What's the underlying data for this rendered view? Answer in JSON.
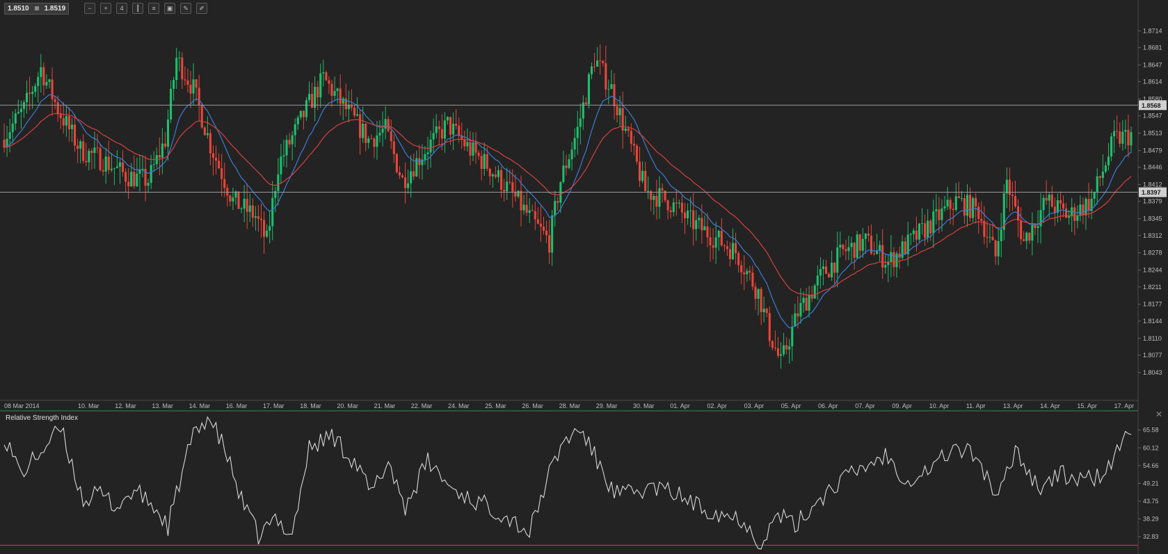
{
  "toolbar": {
    "bid": "1.8510",
    "ask": "1.8519",
    "buttons": [
      {
        "name": "zoom-out-icon",
        "glyph": "−"
      },
      {
        "name": "zoom-in-icon",
        "glyph": "+"
      },
      {
        "name": "timeframe-icon",
        "glyph": "4"
      },
      {
        "name": "candles-icon",
        "glyph": "┃"
      },
      {
        "name": "indicators-icon",
        "glyph": "≡"
      },
      {
        "name": "templates-icon",
        "glyph": "▣"
      },
      {
        "name": "draw-icon",
        "glyph": "✎"
      },
      {
        "name": "edit-icon",
        "glyph": "✐"
      }
    ]
  },
  "rsi_panel": {
    "title": "Relative Strength Index",
    "close": "✕"
  },
  "colors": {
    "up": "#1fbf6e",
    "down": "#e8463a",
    "ma_fast": "#3c7dd9",
    "ma_slow": "#d94040",
    "rsi": "#d8d8d8",
    "hline": "#9a9a9a",
    "rsi_level": "#d94040"
  },
  "chart_data": [
    {
      "type": "candlestick",
      "title": "",
      "y_range": [
        1.801,
        1.875
      ],
      "y_ticks": [
        "1.8714",
        "1.8681",
        "1.8647",
        "1.8614",
        "1.8580",
        "1.8547",
        "1.8513",
        "1.8479",
        "1.8446",
        "1.8412",
        "1.8379",
        "1.8345",
        "1.8312",
        "1.8278",
        "1.8244",
        "1.8211",
        "1.8177",
        "1.8144",
        "1.8110",
        "1.8077",
        "1.8043"
      ],
      "x_labels": [
        "08 Mar 2014",
        "10. Mar",
        "12. Mar",
        "13. Mar",
        "14. Mar",
        "16. Mar",
        "17. Mar",
        "18. Mar",
        "20. Mar",
        "21. Mar",
        "22. Mar",
        "24. Mar",
        "25. Mar",
        "26. Mar",
        "28. Mar",
        "29. Mar",
        "30. Mar",
        "01. Apr",
        "02. Apr",
        "03. Apr",
        "05. Apr",
        "06. Apr",
        "07. Apr",
        "09. Apr",
        "10. Apr",
        "11. Apr",
        "13. Apr",
        "14. Apr",
        "15. Apr",
        "17. Apr"
      ],
      "horizontal_lines": [
        {
          "value": 1.8568,
          "label": "1.8568"
        },
        {
          "value": 1.8397,
          "label": "1.8397"
        }
      ],
      "path_points": [
        [
          0,
          1.85
        ],
        [
          8,
          1.856
        ],
        [
          14,
          1.864
        ],
        [
          20,
          1.856
        ],
        [
          28,
          1.848
        ],
        [
          36,
          1.846
        ],
        [
          44,
          1.843
        ],
        [
          52,
          1.842
        ],
        [
          58,
          1.85
        ],
        [
          62,
          1.866
        ],
        [
          68,
          1.86
        ],
        [
          74,
          1.849
        ],
        [
          82,
          1.838
        ],
        [
          90,
          1.835
        ],
        [
          94,
          1.83
        ],
        [
          98,
          1.845
        ],
        [
          108,
          1.856
        ],
        [
          114,
          1.862
        ],
        [
          122,
          1.856
        ],
        [
          130,
          1.85
        ],
        [
          136,
          1.852
        ],
        [
          142,
          1.842
        ],
        [
          150,
          1.848
        ],
        [
          158,
          1.853
        ],
        [
          166,
          1.848
        ],
        [
          172,
          1.845
        ],
        [
          180,
          1.84
        ],
        [
          188,
          1.834
        ],
        [
          194,
          1.83
        ],
        [
          198,
          1.842
        ],
        [
          204,
          1.852
        ],
        [
          210,
          1.866
        ],
        [
          216,
          1.86
        ],
        [
          222,
          1.85
        ],
        [
          228,
          1.84
        ],
        [
          236,
          1.838
        ],
        [
          244,
          1.834
        ],
        [
          252,
          1.831
        ],
        [
          260,
          1.828
        ],
        [
          268,
          1.82
        ],
        [
          272,
          1.812
        ],
        [
          276,
          1.806
        ],
        [
          282,
          1.816
        ],
        [
          290,
          1.823
        ],
        [
          298,
          1.828
        ],
        [
          306,
          1.83
        ],
        [
          314,
          1.826
        ],
        [
          322,
          1.83
        ],
        [
          330,
          1.834
        ],
        [
          338,
          1.838
        ],
        [
          346,
          1.836
        ],
        [
          352,
          1.827
        ],
        [
          356,
          1.842
        ],
        [
          362,
          1.83
        ],
        [
          370,
          1.838
        ],
        [
          378,
          1.835
        ],
        [
          386,
          1.838
        ],
        [
          394,
          1.85
        ],
        [
          400,
          1.851
        ]
      ],
      "series": [
        {
          "name": "",
          "kind": "moving-average-fast"
        },
        {
          "name": "",
          "kind": "moving-average-slow"
        }
      ]
    },
    {
      "type": "line",
      "title": "Relative Strength Index",
      "y_range": [
        29.0,
        70.0
      ],
      "y_ticks": [
        "65.58",
        "60.12",
        "54.66",
        "49.21",
        "43.75",
        "38.29",
        "32.83"
      ],
      "level_line": 30.2,
      "path_points": [
        [
          0,
          64
        ],
        [
          6,
          52
        ],
        [
          12,
          58
        ],
        [
          20,
          66
        ],
        [
          28,
          44
        ],
        [
          34,
          46
        ],
        [
          40,
          42
        ],
        [
          46,
          47
        ],
        [
          52,
          43
        ],
        [
          58,
          36
        ],
        [
          66,
          62
        ],
        [
          72,
          70
        ],
        [
          78,
          60
        ],
        [
          84,
          44
        ],
        [
          90,
          33
        ],
        [
          96,
          38
        ],
        [
          102,
          34
        ],
        [
          108,
          60
        ],
        [
          116,
          64
        ],
        [
          124,
          56
        ],
        [
          130,
          46
        ],
        [
          136,
          56
        ],
        [
          142,
          42
        ],
        [
          150,
          56
        ],
        [
          158,
          48
        ],
        [
          166,
          44
        ],
        [
          172,
          42
        ],
        [
          180,
          38
        ],
        [
          186,
          34
        ],
        [
          192,
          50
        ],
        [
          198,
          62
        ],
        [
          204,
          66
        ],
        [
          210,
          56
        ],
        [
          216,
          46
        ],
        [
          222,
          46
        ],
        [
          230,
          48
        ],
        [
          238,
          46
        ],
        [
          246,
          42
        ],
        [
          254,
          40
        ],
        [
          262,
          38
        ],
        [
          268,
          30
        ],
        [
          274,
          40
        ],
        [
          280,
          36
        ],
        [
          288,
          44
        ],
        [
          296,
          50
        ],
        [
          304,
          54
        ],
        [
          312,
          58
        ],
        [
          320,
          50
        ],
        [
          328,
          54
        ],
        [
          336,
          60
        ],
        [
          344,
          58
        ],
        [
          352,
          44
        ],
        [
          358,
          60
        ],
        [
          366,
          48
        ],
        [
          374,
          52
        ],
        [
          382,
          50
        ],
        [
          390,
          52
        ],
        [
          396,
          62
        ],
        [
          400,
          66
        ]
      ]
    }
  ]
}
